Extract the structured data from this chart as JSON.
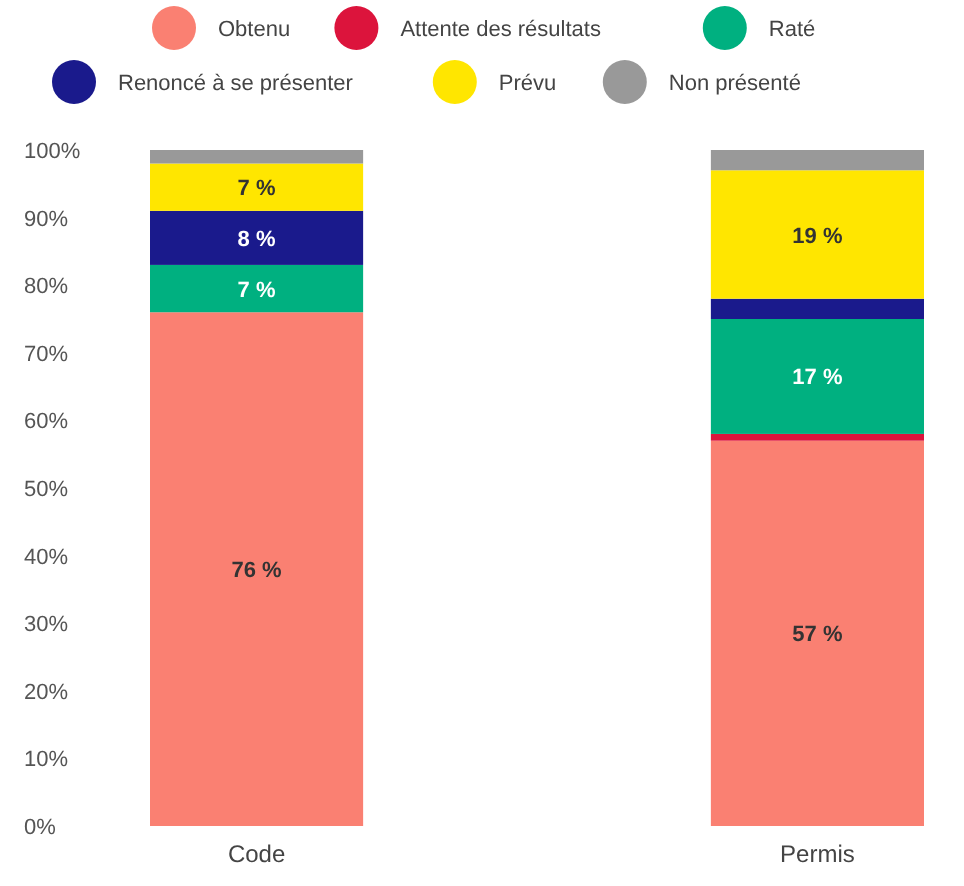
{
  "chart_data": {
    "type": "bar",
    "stacked": true,
    "categories": [
      "Code",
      "Permis"
    ],
    "series": [
      {
        "name": "Obtenu",
        "color": "#fa8072",
        "values": [
          76,
          57
        ],
        "value_labels": [
          "76 %",
          "57 %"
        ]
      },
      {
        "name": "Attente des résultats",
        "color": "#dc143c",
        "values": [
          0,
          1
        ],
        "value_labels": [
          null,
          null
        ]
      },
      {
        "name": "Raté",
        "color": "#00b080",
        "values": [
          7,
          17
        ],
        "value_labels": [
          "7 %",
          "17 %"
        ]
      },
      {
        "name": "Renoncé à se présenter",
        "color": "#1a1a8c",
        "values": [
          8,
          3
        ],
        "value_labels": [
          "8 %",
          null
        ]
      },
      {
        "name": "Prévu",
        "color": "#ffe600",
        "values": [
          7,
          19
        ],
        "value_labels": [
          "7 %",
          "19 %"
        ]
      },
      {
        "name": "Non présenté",
        "color": "#999999",
        "values": [
          2,
          3
        ],
        "value_labels": [
          null,
          null
        ]
      }
    ],
    "ylim": [
      0,
      100
    ],
    "yticks": [
      {
        "value": 0,
        "label": "0%"
      },
      {
        "value": 10,
        "label": "10%"
      },
      {
        "value": 20,
        "label": "20%"
      },
      {
        "value": 30,
        "label": "30%"
      },
      {
        "value": 40,
        "label": "40%"
      },
      {
        "value": 50,
        "label": "50%"
      },
      {
        "value": 60,
        "label": "60%"
      },
      {
        "value": 70,
        "label": "70%"
      },
      {
        "value": 80,
        "label": "80%"
      },
      {
        "value": 90,
        "label": "90%"
      },
      {
        "value": 100,
        "label": "100%"
      }
    ],
    "grid": false,
    "legend": "top"
  }
}
